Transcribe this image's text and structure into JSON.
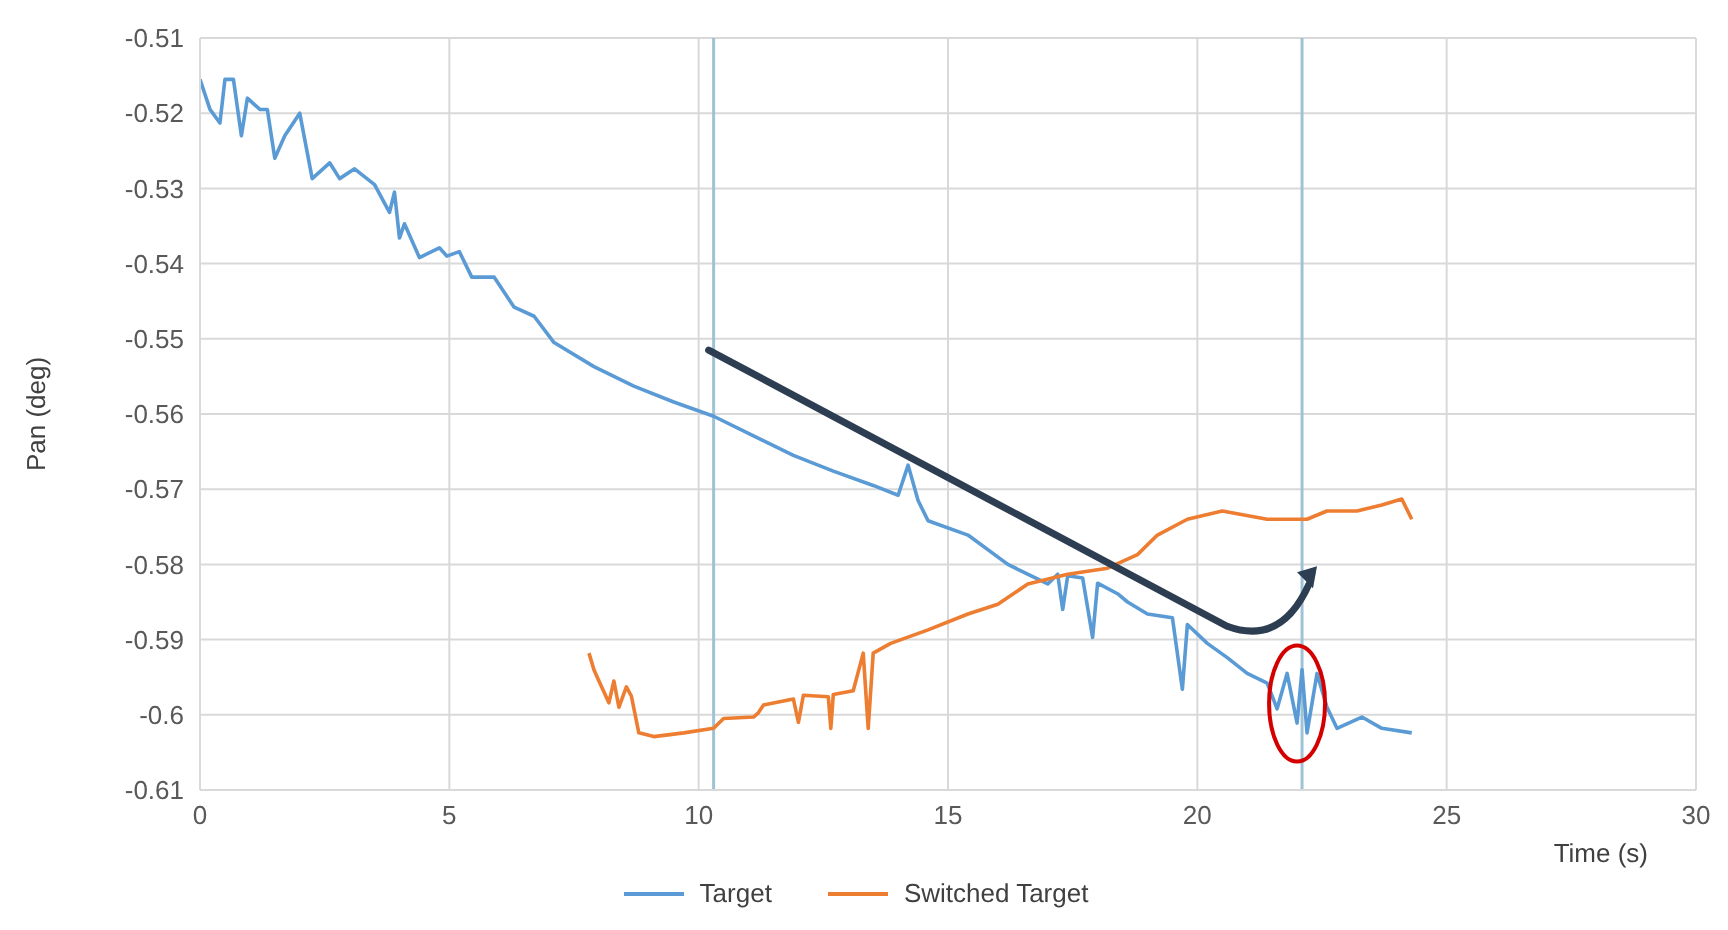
{
  "chart_data": {
    "type": "line",
    "ylabel": "Pan (deg)",
    "xlabel": "Time (s)",
    "xlim": [
      0,
      30
    ],
    "xticks": [
      0,
      5,
      10,
      15,
      20,
      25,
      30
    ],
    "ylim": [
      -0.61,
      -0.51
    ],
    "yticks": [
      -0.61,
      -0.6,
      -0.59,
      -0.58,
      -0.57,
      -0.56,
      -0.55,
      -0.54,
      -0.53,
      -0.52,
      -0.51
    ],
    "grid": true,
    "legend": "bottom",
    "line_style": "solid",
    "ref_lines": [
      {
        "axis": "x",
        "value": 10.3,
        "color": "#9fc2d6"
      },
      {
        "axis": "x",
        "value": 22.1,
        "color": "#9fc2d6"
      }
    ],
    "series": [
      {
        "name": "Target",
        "color": "#5b9bd5",
        "x": [
          0,
          0.2,
          0.4,
          0.5,
          0.67,
          0.83,
          0.95,
          1.2,
          1.35,
          1.5,
          1.7,
          2.0,
          2.25,
          2.6,
          2.8,
          3.1,
          3.5,
          3.8,
          3.9,
          4.0,
          4.1,
          4.4,
          4.8,
          4.95,
          5.2,
          5.45,
          5.9,
          6.3,
          6.7,
          7.1,
          7.9,
          8.7,
          9.5,
          10.3,
          11.1,
          11.9,
          12.7,
          13.5,
          14.0,
          14.2,
          14.4,
          14.6,
          15.4,
          16.2,
          17.0,
          17.2,
          17.3,
          17.4,
          17.7,
          17.9,
          18.0,
          18.4,
          18.6,
          19.0,
          19.5,
          19.7,
          19.8,
          20.2,
          20.6,
          21.0,
          21.4,
          21.6,
          21.8,
          22.0,
          22.1,
          22.2,
          22.4,
          22.6,
          22.8,
          23.3,
          23.7,
          24.3
        ],
        "values": [
          -0.5155,
          -0.5195,
          -0.5213,
          -0.5155,
          -0.5155,
          -0.523,
          -0.518,
          -0.5195,
          -0.5195,
          -0.526,
          -0.523,
          -0.52,
          -0.5287,
          -0.5266,
          -0.5287,
          -0.5274,
          -0.5295,
          -0.5332,
          -0.5305,
          -0.5366,
          -0.5347,
          -0.5392,
          -0.5379,
          -0.539,
          -0.5384,
          -0.5418,
          -0.5418,
          -0.5458,
          -0.547,
          -0.5505,
          -0.5537,
          -0.5563,
          -0.5584,
          -0.5603,
          -0.5629,
          -0.5655,
          -0.5676,
          -0.5695,
          -0.5708,
          -0.5668,
          -0.5715,
          -0.5742,
          -0.5761,
          -0.58,
          -0.5826,
          -0.5813,
          -0.586,
          -0.5815,
          -0.5818,
          -0.5897,
          -0.5825,
          -0.5839,
          -0.585,
          -0.5866,
          -0.5871,
          -0.5966,
          -0.588,
          -0.5905,
          -0.5924,
          -0.5945,
          -0.5958,
          -0.5992,
          -0.5945,
          -0.6011,
          -0.594,
          -0.6024,
          -0.5945,
          -0.599,
          -0.6018,
          -0.6003,
          -0.6018,
          -0.6024
        ]
      },
      {
        "name": "Switched Target",
        "color": "#ed7d31",
        "x": [
          7.8,
          7.9,
          8.0,
          8.2,
          8.3,
          8.4,
          8.55,
          8.65,
          8.8,
          9.1,
          9.7,
          10.3,
          10.5,
          11.1,
          11.2,
          11.3,
          11.9,
          12.0,
          12.1,
          12.6,
          12.65,
          12.7,
          13.1,
          13.3,
          13.4,
          13.5,
          13.85,
          14.6,
          15.4,
          16.0,
          16.6,
          17.4,
          18.2,
          18.8,
          19.2,
          19.8,
          20.5,
          21.4,
          22.2,
          22.6,
          23.2,
          23.7,
          24.1,
          24.3
        ],
        "values": [
          -0.5918,
          -0.594,
          -0.5955,
          -0.5984,
          -0.5955,
          -0.599,
          -0.5963,
          -0.5975,
          -0.6024,
          -0.6029,
          -0.6024,
          -0.6018,
          -0.6005,
          -0.6003,
          -0.5997,
          -0.5987,
          -0.5979,
          -0.601,
          -0.5974,
          -0.5976,
          -0.6018,
          -0.5973,
          -0.5968,
          -0.5918,
          -0.6018,
          -0.5918,
          -0.5905,
          -0.5887,
          -0.5866,
          -0.5853,
          -0.5826,
          -0.5813,
          -0.5805,
          -0.5787,
          -0.5761,
          -0.574,
          -0.5729,
          -0.574,
          -0.574,
          -0.5729,
          -0.5729,
          -0.5721,
          -0.5713,
          -0.574
        ]
      }
    ]
  }
}
